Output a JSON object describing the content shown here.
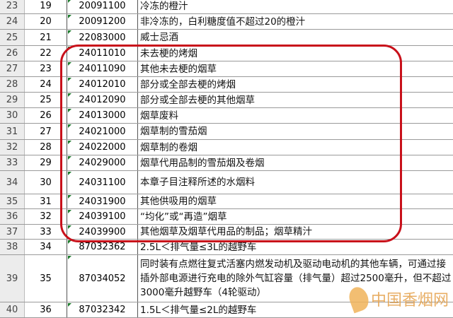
{
  "rows": [
    {
      "rn": "23",
      "a": "19",
      "b": "20091100",
      "c": "冷冻的橙汁"
    },
    {
      "rn": "24",
      "a": "20",
      "b": "20091200",
      "c": "非冷冻的，白利糖度值不超过20的橙汁"
    },
    {
      "rn": "25",
      "a": "21",
      "b": "22083000",
      "c": "威士忌酒"
    },
    {
      "rn": "26",
      "a": "22",
      "b": "24011010",
      "c": "未去梗的烤烟"
    },
    {
      "rn": "27",
      "a": "23",
      "b": "24011090",
      "c": "其他未去梗的烟草"
    },
    {
      "rn": "28",
      "a": "24",
      "b": "24012010",
      "c": "部分或全部去梗的烤烟"
    },
    {
      "rn": "29",
      "a": "25",
      "b": "24012090",
      "c": "部分或全部去梗的其他烟草"
    },
    {
      "rn": "30",
      "a": "26",
      "b": "24013000",
      "c": "烟草废料"
    },
    {
      "rn": "31",
      "a": "27",
      "b": "24021000",
      "c": "烟草制的雪茄烟"
    },
    {
      "rn": "32",
      "a": "28",
      "b": "24022000",
      "c": "烟草制的卷烟"
    },
    {
      "rn": "33",
      "a": "29",
      "b": "24029000",
      "c": "烟草代用品制的雪茄烟及卷烟"
    },
    {
      "rn": "34",
      "a": "30",
      "b": "24031100",
      "c": "本章子目注释所述的水烟料"
    },
    {
      "rn": "35",
      "a": "31",
      "b": "24031900",
      "c": "其他供吸用的烟草"
    },
    {
      "rn": "36",
      "a": "32",
      "b": "24039100",
      "c": "“均化”或“再造”烟草"
    },
    {
      "rn": "37",
      "a": "33",
      "b": "24039900",
      "c": "其他烟草及烟草代用品的制品；烟草精汁"
    },
    {
      "rn": "38",
      "a": "34",
      "b": "87032362",
      "c": "2.5L＜排气量≤3L的越野车"
    },
    {
      "rn": "39",
      "a": "35",
      "b": "87034052",
      "c": "同时装有点燃往复式活塞内燃发动机及驱动电动机的其他车辆，可通过接插外部电源进行充电的除外气缸容量（排气量）超过2500毫升，但不超过3000毫升越野车（4轮驱动）"
    },
    {
      "rn": "40",
      "a": "36",
      "b": "87032342",
      "c": "1.5L＜排气量≤2L的越野车"
    }
  ],
  "watermark": "中国香烟网",
  "colors": {
    "highlight": "#c8101a"
  }
}
